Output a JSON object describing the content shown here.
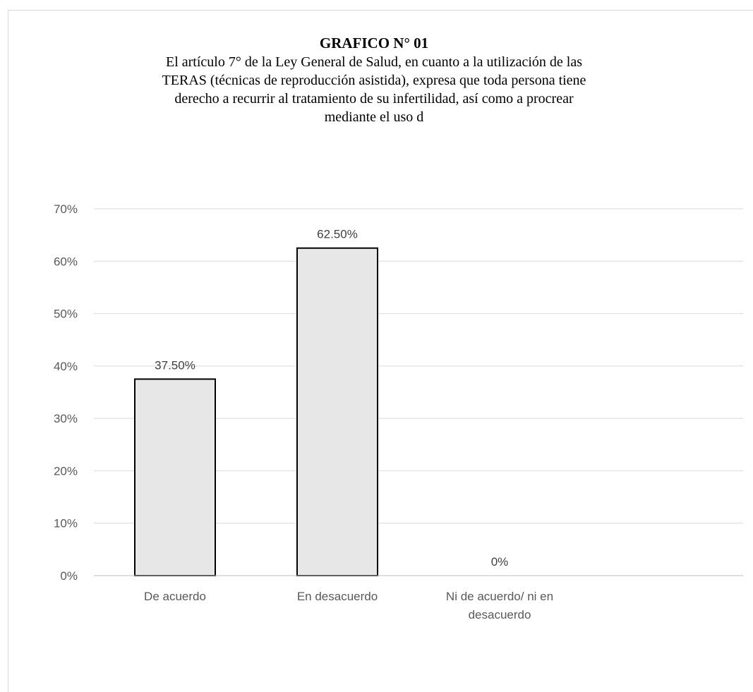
{
  "chart_data": {
    "type": "bar",
    "title": "GRAFICO N° 01",
    "subtitle_lines": [
      "El artículo 7° de la Ley General de Salud, en cuanto a la utilización de las",
      "TERAS (técnicas de reproducción asistida), expresa que toda persona tiene",
      "derecho a recurrir al tratamiento de su infertilidad, así como a procrear",
      "mediante el uso d"
    ],
    "categories": [
      [
        "De acuerdo"
      ],
      [
        "En desacuerdo"
      ],
      [
        "Ni de acuerdo/ ni en",
        "desacuerdo"
      ]
    ],
    "values": [
      37.5,
      62.5,
      0
    ],
    "data_labels": [
      "37.50%",
      "62.50%",
      "0%"
    ],
    "ylim": [
      0,
      70
    ],
    "yticks": [
      0,
      10,
      20,
      30,
      40,
      50,
      60,
      70
    ],
    "ytick_labels": [
      "0%",
      "10%",
      "20%",
      "30%",
      "40%",
      "50%",
      "60%",
      "70%"
    ],
    "xlabel": "",
    "ylabel": "",
    "grid": true,
    "legend": "none",
    "colors": {
      "bar_fill": "#e7e7e7",
      "bar_stroke": "#000000",
      "grid": "#d9d9d9",
      "axis": "#bfbfbf"
    }
  }
}
